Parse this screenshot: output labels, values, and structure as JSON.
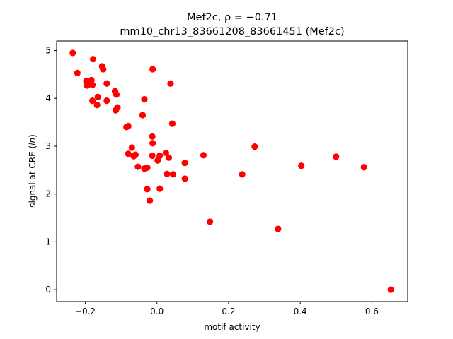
{
  "chart_data": {
    "type": "scatter",
    "title_line1": "Mef2c, ρ = −0.71",
    "title_line2": "mm10_chr13_83661208_83661451 (Mef2c)",
    "xlabel": "motif activity",
    "ylabel": "signal at CRE (ln)",
    "xlim": [
      -0.28,
      0.7
    ],
    "ylim": [
      -0.25,
      5.2
    ],
    "xticks": [
      -0.2,
      0.0,
      0.2,
      0.4,
      0.6
    ],
    "xtick_labels": [
      "−0.2",
      "0.0",
      "0.2",
      "0.4",
      "0.6"
    ],
    "yticks": [
      0,
      1,
      2,
      3,
      4,
      5
    ],
    "ytick_labels": [
      "0",
      "1",
      "2",
      "3",
      "4",
      "5"
    ],
    "grid": false,
    "marker_color": "#ff0000",
    "points": [
      {
        "x": -0.235,
        "y": 4.95
      },
      {
        "x": -0.222,
        "y": 4.53
      },
      {
        "x": -0.197,
        "y": 4.36
      },
      {
        "x": -0.195,
        "y": 4.27
      },
      {
        "x": -0.183,
        "y": 4.38
      },
      {
        "x": -0.18,
        "y": 4.28
      },
      {
        "x": -0.178,
        "y": 4.82
      },
      {
        "x": -0.18,
        "y": 3.95
      },
      {
        "x": -0.167,
        "y": 3.86
      },
      {
        "x": -0.165,
        "y": 4.03
      },
      {
        "x": -0.153,
        "y": 4.67
      },
      {
        "x": -0.15,
        "y": 4.61
      },
      {
        "x": -0.14,
        "y": 4.31
      },
      {
        "x": -0.14,
        "y": 3.95
      },
      {
        "x": -0.117,
        "y": 4.15
      },
      {
        "x": -0.113,
        "y": 4.08
      },
      {
        "x": -0.115,
        "y": 3.75
      },
      {
        "x": -0.11,
        "y": 3.81
      },
      {
        "x": -0.085,
        "y": 3.4
      },
      {
        "x": -0.08,
        "y": 3.42
      },
      {
        "x": -0.08,
        "y": 2.84
      },
      {
        "x": -0.07,
        "y": 2.97
      },
      {
        "x": -0.065,
        "y": 2.79
      },
      {
        "x": -0.06,
        "y": 2.82
      },
      {
        "x": -0.053,
        "y": 2.57
      },
      {
        "x": -0.04,
        "y": 3.65
      },
      {
        "x": -0.035,
        "y": 3.98
      },
      {
        "x": -0.035,
        "y": 2.53
      },
      {
        "x": -0.027,
        "y": 2.55
      },
      {
        "x": -0.027,
        "y": 2.1
      },
      {
        "x": -0.02,
        "y": 1.86
      },
      {
        "x": -0.012,
        "y": 4.61
      },
      {
        "x": -0.013,
        "y": 3.2
      },
      {
        "x": -0.012,
        "y": 3.06
      },
      {
        "x": -0.013,
        "y": 2.8
      },
      {
        "x": 0.002,
        "y": 2.7
      },
      {
        "x": 0.008,
        "y": 2.8
      },
      {
        "x": 0.008,
        "y": 2.11
      },
      {
        "x": 0.025,
        "y": 2.86
      },
      {
        "x": 0.028,
        "y": 2.42
      },
      {
        "x": 0.033,
        "y": 2.76
      },
      {
        "x": 0.038,
        "y": 4.31
      },
      {
        "x": 0.043,
        "y": 3.47
      },
      {
        "x": 0.045,
        "y": 2.41
      },
      {
        "x": 0.078,
        "y": 2.65
      },
      {
        "x": 0.078,
        "y": 2.32
      },
      {
        "x": 0.13,
        "y": 2.81
      },
      {
        "x": 0.148,
        "y": 1.42
      },
      {
        "x": 0.238,
        "y": 2.41
      },
      {
        "x": 0.273,
        "y": 2.99
      },
      {
        "x": 0.338,
        "y": 1.27
      },
      {
        "x": 0.403,
        "y": 2.59
      },
      {
        "x": 0.5,
        "y": 2.78
      },
      {
        "x": 0.578,
        "y": 2.56
      },
      {
        "x": 0.653,
        "y": 0.0
      }
    ]
  }
}
